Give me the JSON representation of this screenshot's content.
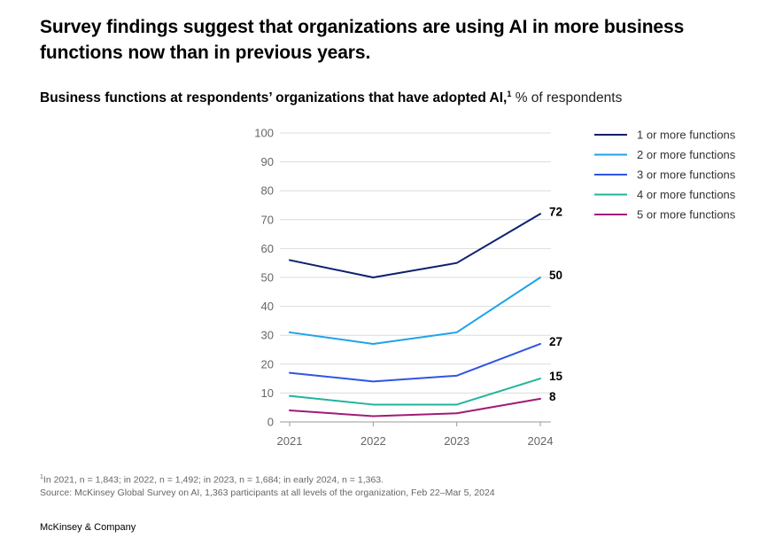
{
  "headline": "Survey findings suggest that organizations are using AI in more business functions now than in previous years.",
  "subtitle": {
    "bold": "Business functions at respondents’ organizations that have adopted AI,",
    "sup": "1",
    "unit": "% of respondents"
  },
  "footnote": {
    "sup": "1",
    "line1": "In 2021, n = 1,843; in 2022, n = 1,492; in 2023, n = 1,684; in early 2024, n = 1,363.",
    "line2": "Source: McKinsey Global Survey on AI, 1,363 participants at all levels of the organization, Feb 22–Mar 5, 2024"
  },
  "brand": "McKinsey & Company",
  "chart_data": {
    "type": "line",
    "categories": [
      "2021",
      "2022",
      "2023",
      "2024"
    ],
    "ylim": [
      0,
      100
    ],
    "yticks": [
      0,
      10,
      20,
      30,
      40,
      50,
      60,
      70,
      80,
      90,
      100
    ],
    "grid": true,
    "legend_position": "top-right",
    "series": [
      {
        "name": "1 or more functions",
        "color": "#0d1f6e",
        "values": [
          56,
          50,
          55,
          72
        ],
        "end_label": "72"
      },
      {
        "name": "2 or more functions",
        "color": "#1fa3e8",
        "values": [
          31,
          27,
          31,
          50
        ],
        "end_label": "50"
      },
      {
        "name": "3 or more functions",
        "color": "#2f55e3",
        "values": [
          17,
          14,
          16,
          27
        ],
        "end_label": "27"
      },
      {
        "name": "4 or more functions",
        "color": "#1fb59c",
        "values": [
          9,
          6,
          6,
          15
        ],
        "end_label": "15"
      },
      {
        "name": "5 or more functions",
        "color": "#a11a78",
        "values": [
          4,
          2,
          3,
          8
        ],
        "end_label": "8"
      }
    ]
  }
}
